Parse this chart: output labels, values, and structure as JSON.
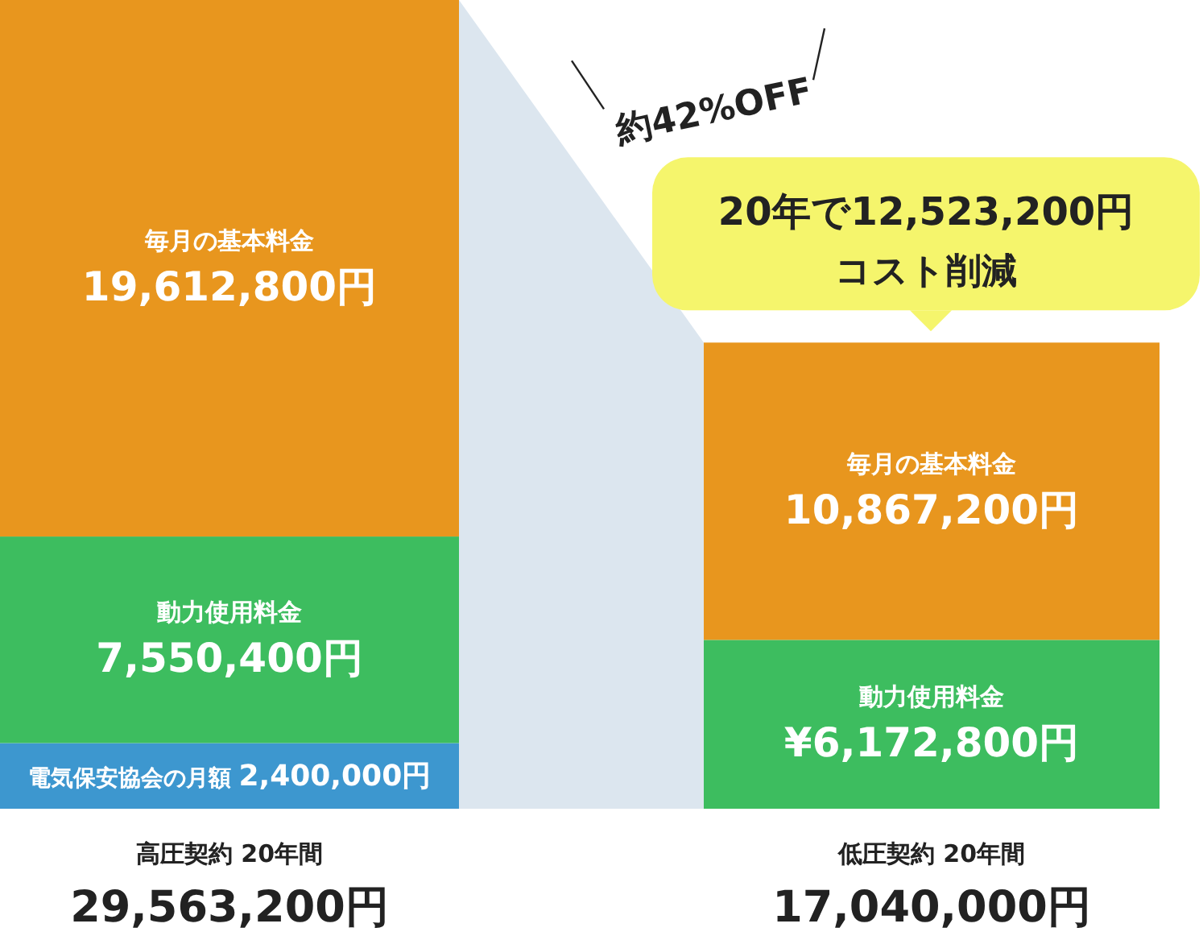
{
  "chart_data": {
    "type": "bar",
    "stacked": true,
    "categories": [
      "高圧契約 20年間",
      "低圧契約 20年間"
    ],
    "series": [
      {
        "name": "電気保安協会の月額",
        "color": "#3d97cf",
        "values": [
          2400000,
          null
        ],
        "value_labels": [
          "2,400,000円",
          null
        ]
      },
      {
        "name": "動力使用料金",
        "color": "#3dbd5f",
        "values": [
          7550400,
          6172800
        ],
        "value_labels": [
          "7,550,400円",
          "¥6,172,800円"
        ]
      },
      {
        "name": "毎月の基本料金",
        "color": "#e8961e",
        "values": [
          19612800,
          10867200
        ],
        "value_labels": [
          "19,612,800円",
          "10,867,200円"
        ]
      }
    ],
    "totals": [
      "29,563,200円",
      "17,040,000円"
    ],
    "annotations": [
      "約42%OFF",
      "20年で12,523,200円",
      "コスト削減"
    ]
  }
}
